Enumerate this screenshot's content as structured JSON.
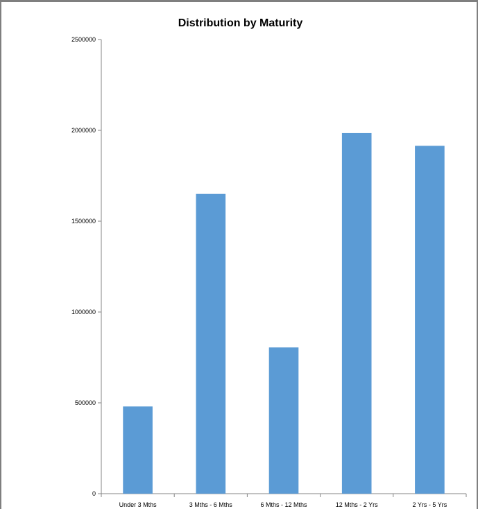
{
  "chart_data": {
    "type": "bar",
    "title": "Distribution by Maturity",
    "xlabel": "",
    "ylabel": "",
    "categories": [
      "Under 3 Mths",
      "3 Mths - 6 Mths",
      "6 Mths - 12 Mths",
      "12 Mths - 2 Yrs",
      "2 Yrs - 5 Yrs"
    ],
    "values": [
      480000,
      1650000,
      805000,
      1985000,
      1915000
    ],
    "ylim": [
      0,
      2500000
    ],
    "yticks": [
      "0",
      "500000",
      "1000000",
      "1500000",
      "2000000",
      "2500000"
    ],
    "ytick_values": [
      0,
      500000,
      1000000,
      1500000,
      2000000,
      2500000
    ],
    "grid": false,
    "legend": "none",
    "bar_color": "#5b9bd5",
    "axis_color": "#868686"
  }
}
